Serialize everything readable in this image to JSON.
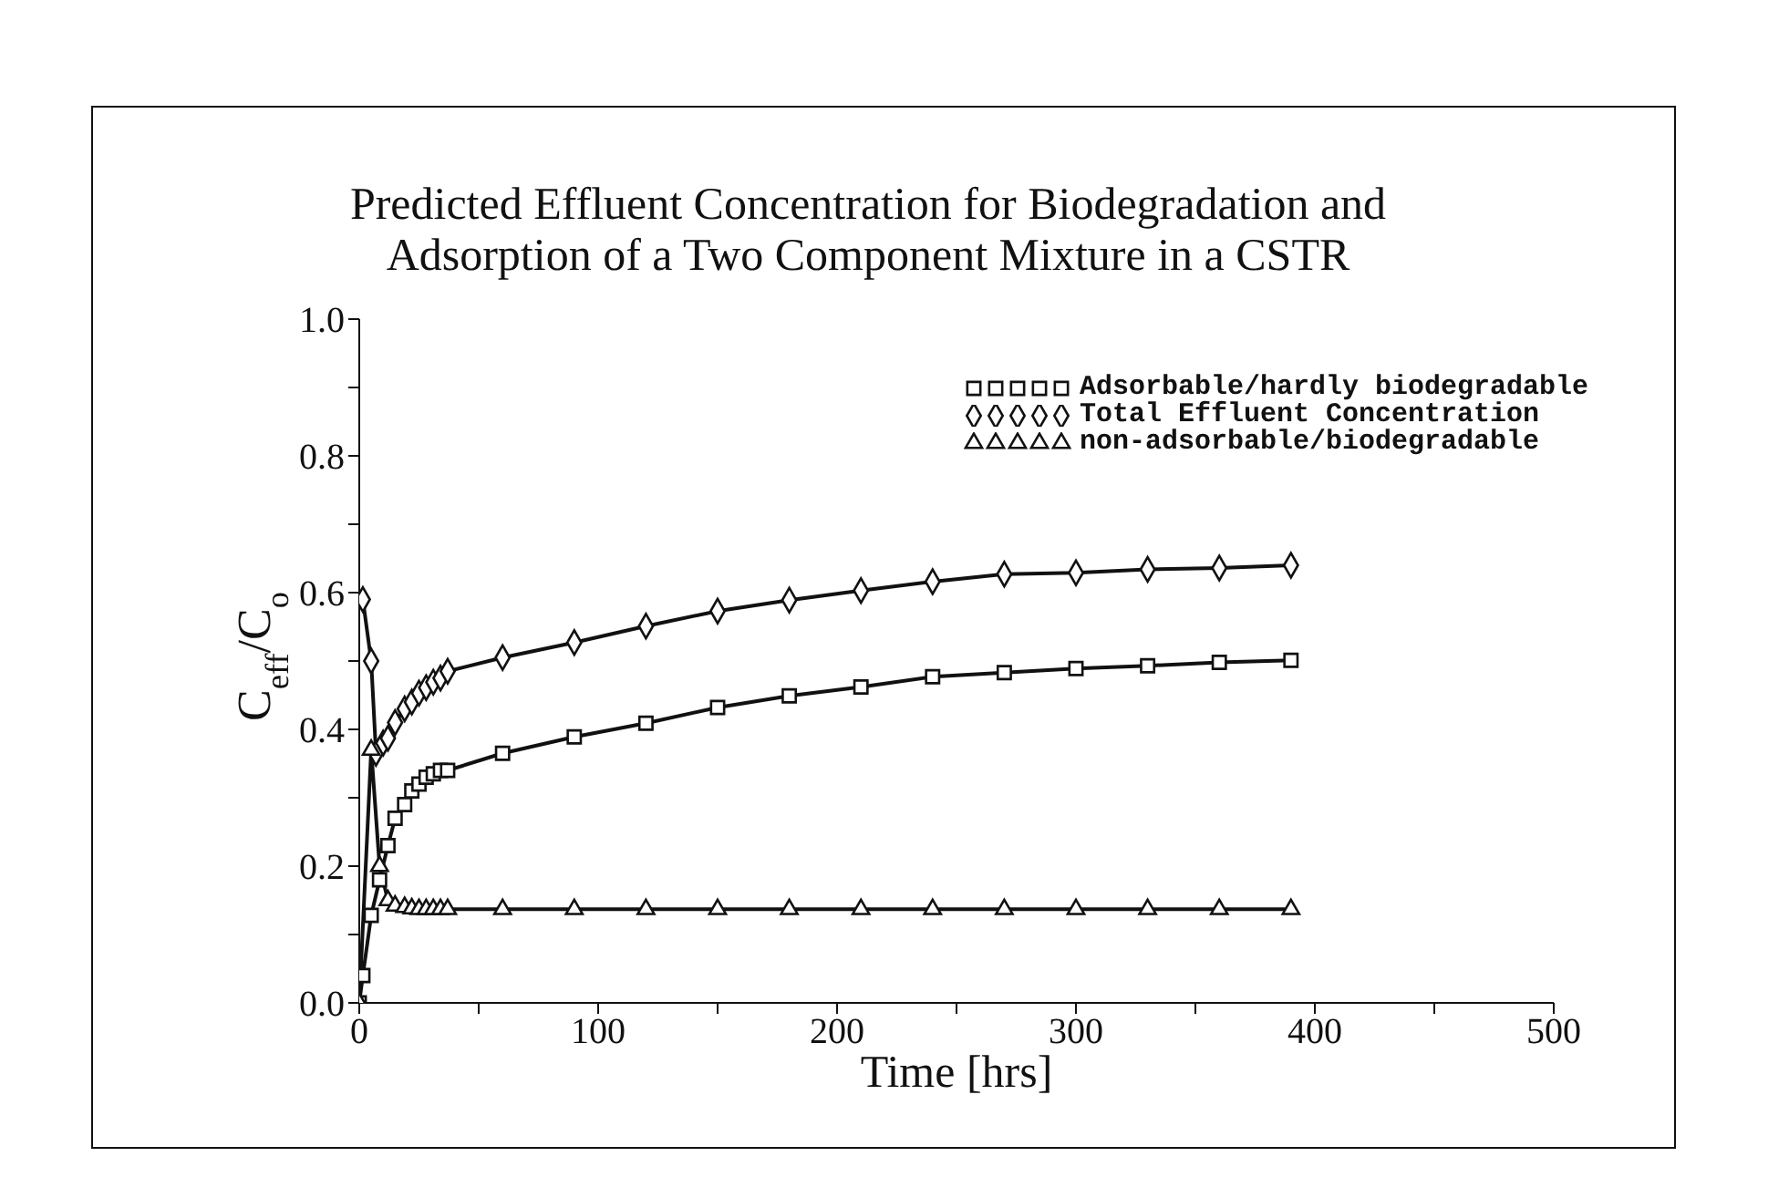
{
  "chart_data": {
    "type": "line",
    "title": "Predicted Effluent Concentration for Biodegradation and\nAdsorption of a Two Component Mixture in a CSTR",
    "xlabel": "Time [hrs]",
    "ylabel": "C$_{eff}$/C$_{o}$",
    "xlim": [
      0,
      500
    ],
    "xticks": [
      0,
      {
        "value": 50,
        "label": null
      },
      100,
      {
        "value": 150,
        "label": null
      },
      200,
      {
        "value": 250,
        "label": null
      },
      300,
      {
        "value": 350,
        "label": null
      },
      400,
      {
        "value": 450,
        "label": null
      },
      500
    ],
    "ylim": [
      0,
      1
    ],
    "yticks": [
      {
        "value": 0,
        "label": "0.0"
      },
      {
        "value": 0.1,
        "label": null
      },
      {
        "value": 0.2,
        "label": "0.2"
      },
      {
        "value": 0.3,
        "label": null
      },
      {
        "value": 0.4,
        "label": "0.4"
      },
      {
        "value": 0.5,
        "label": null
      },
      {
        "value": 0.6,
        "label": "0.6"
      },
      {
        "value": 0.7,
        "label": null
      },
      {
        "value": 0.8,
        "label": "0.8"
      },
      {
        "value": 0.9,
        "label": null
      },
      {
        "value": 1,
        "label": "1.0"
      }
    ],
    "grid": false,
    "legend": "top right",
    "line_style": "solid",
    "series": [
      {
        "name": "Adsorbable/hardly biodegradable",
        "color": "#111111",
        "marker": "square",
        "x": [
          0,
          1.5,
          5,
          8.5,
          12,
          15,
          19,
          22,
          25,
          28,
          31,
          34,
          37,
          60,
          90,
          120,
          150,
          180,
          210,
          240,
          270,
          300,
          330,
          360,
          390
        ],
        "values": [
          0,
          0.04,
          0.128,
          0.18,
          0.23,
          0.27,
          0.29,
          0.31,
          0.32,
          0.33,
          0.335,
          0.34,
          0.34,
          0.365,
          0.389,
          0.409,
          0.432,
          0.449,
          0.462,
          0.477,
          0.483,
          0.489,
          0.493,
          0.498,
          0.501
        ]
      },
      {
        "name": "Total Effluent Concentration",
        "color": "#111111",
        "marker": "diamond",
        "x": [
          1.5,
          5,
          7,
          10,
          12,
          15,
          19,
          22,
          25,
          28,
          31,
          34,
          37,
          60,
          90,
          120,
          150,
          180,
          210,
          240,
          270,
          300,
          330,
          360,
          390
        ],
        "values": [
          0.59,
          0.5,
          0.365,
          0.38,
          0.387,
          0.41,
          0.43,
          0.44,
          0.453,
          0.461,
          0.469,
          0.475,
          0.485,
          0.505,
          0.527,
          0.551,
          0.573,
          0.589,
          0.603,
          0.616,
          0.627,
          0.629,
          0.634,
          0.636,
          0.64
        ]
      },
      {
        "name": "non-adsorbable/biodegradable",
        "color": "#111111",
        "marker": "triangle",
        "x": [
          0,
          5,
          8.5,
          12,
          15,
          19,
          22,
          25,
          28,
          31,
          34,
          37,
          60,
          90,
          120,
          150,
          180,
          210,
          240,
          270,
          300,
          330,
          360,
          390
        ],
        "values": [
          0,
          0.37,
          0.2,
          0.15,
          0.142,
          0.14,
          0.138,
          0.137,
          0.137,
          0.137,
          0.137,
          0.137,
          0.137,
          0.137,
          0.137,
          0.137,
          0.137,
          0.137,
          0.137,
          0.137,
          0.137,
          0.137,
          0.137,
          0.137
        ]
      }
    ]
  }
}
